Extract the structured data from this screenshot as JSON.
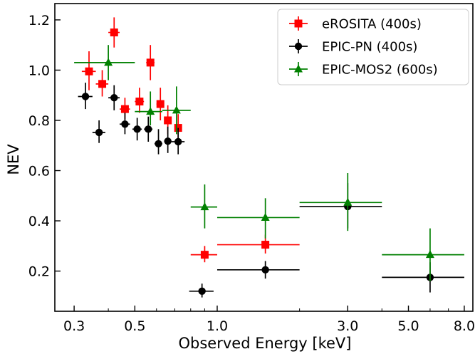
{
  "chart_data": {
    "type": "scatter",
    "xlabel": "Observed Energy [keV]",
    "ylabel": "NEV",
    "xscale": "log",
    "xlim": [
      0.255,
      8.6
    ],
    "ylim": [
      0.04,
      1.265
    ],
    "xticks": [
      {
        "value": 0.3,
        "label": "0.3"
      },
      {
        "value": 0.5,
        "label": "0.5"
      },
      {
        "value": 1.0,
        "label": "1.0"
      },
      {
        "value": 3.0,
        "label": "3.0"
      },
      {
        "value": 5.0,
        "label": "5.0"
      },
      {
        "value": 8.0,
        "label": "8.0"
      }
    ],
    "yticks": [
      {
        "value": 0.2,
        "label": "0.2"
      },
      {
        "value": 0.4,
        "label": "0.4"
      },
      {
        "value": 0.6,
        "label": "0.6"
      },
      {
        "value": 0.8,
        "label": "0.8"
      },
      {
        "value": 1.0,
        "label": "1.0"
      },
      {
        "value": 1.2,
        "label": "1.2"
      }
    ],
    "legend_position": "top-right",
    "series": [
      {
        "name": "eROSITA (400s)",
        "color": "#ff0000",
        "marker": "square",
        "points": [
          {
            "x": 0.34,
            "xlo": 0.32,
            "xhi": 0.36,
            "y": 0.995,
            "ylo": 0.92,
            "yhi": 1.075
          },
          {
            "x": 0.38,
            "xlo": 0.36,
            "xhi": 0.4,
            "y": 0.945,
            "ylo": 0.895,
            "yhi": 1.0
          },
          {
            "x": 0.42,
            "xlo": 0.4,
            "xhi": 0.44,
            "y": 1.15,
            "ylo": 1.09,
            "yhi": 1.21
          },
          {
            "x": 0.46,
            "xlo": 0.44,
            "xhi": 0.48,
            "y": 0.845,
            "ylo": 0.805,
            "yhi": 0.89
          },
          {
            "x": 0.52,
            "xlo": 0.5,
            "xhi": 0.54,
            "y": 0.875,
            "ylo": 0.83,
            "yhi": 0.93
          },
          {
            "x": 0.57,
            "xlo": 0.55,
            "xhi": 0.59,
            "y": 1.03,
            "ylo": 0.96,
            "yhi": 1.1
          },
          {
            "x": 0.62,
            "xlo": 0.6,
            "xhi": 0.64,
            "y": 0.865,
            "ylo": 0.8,
            "yhi": 0.93
          },
          {
            "x": 0.66,
            "xlo": 0.64,
            "xhi": 0.68,
            "y": 0.8,
            "ylo": 0.745,
            "yhi": 0.86
          },
          {
            "x": 0.72,
            "xlo": 0.7,
            "xhi": 0.74,
            "y": 0.77,
            "ylo": 0.72,
            "yhi": 0.825
          },
          {
            "x": 0.9,
            "xlo": 0.8,
            "xhi": 1.0,
            "y": 0.265,
            "ylo": 0.235,
            "yhi": 0.3
          },
          {
            "x": 1.5,
            "xlo": 1.0,
            "xhi": 2.0,
            "y": 0.305,
            "ylo": 0.27,
            "yhi": 0.345
          }
        ]
      },
      {
        "name": "EPIC-PN (400s)",
        "color": "#000000",
        "marker": "circle",
        "points": [
          {
            "x": 0.33,
            "xlo": 0.31,
            "xhi": 0.35,
            "y": 0.895,
            "ylo": 0.845,
            "yhi": 0.95
          },
          {
            "x": 0.37,
            "xlo": 0.35,
            "xhi": 0.39,
            "y": 0.752,
            "ylo": 0.71,
            "yhi": 0.8
          },
          {
            "x": 0.42,
            "xlo": 0.4,
            "xhi": 0.44,
            "y": 0.89,
            "ylo": 0.84,
            "yhi": 0.94
          },
          {
            "x": 0.46,
            "xlo": 0.44,
            "xhi": 0.48,
            "y": 0.785,
            "ylo": 0.745,
            "yhi": 0.83
          },
          {
            "x": 0.51,
            "xlo": 0.49,
            "xhi": 0.53,
            "y": 0.765,
            "ylo": 0.72,
            "yhi": 0.81
          },
          {
            "x": 0.56,
            "xlo": 0.54,
            "xhi": 0.58,
            "y": 0.765,
            "ylo": 0.715,
            "yhi": 0.815
          },
          {
            "x": 0.61,
            "xlo": 0.59,
            "xhi": 0.63,
            "y": 0.707,
            "ylo": 0.665,
            "yhi": 0.765
          },
          {
            "x": 0.66,
            "xlo": 0.64,
            "xhi": 0.68,
            "y": 0.717,
            "ylo": 0.67,
            "yhi": 0.775
          },
          {
            "x": 0.72,
            "xlo": 0.68,
            "xhi": 0.76,
            "y": 0.715,
            "ylo": 0.665,
            "yhi": 0.77
          },
          {
            "x": 0.88,
            "xlo": 0.79,
            "xhi": 0.97,
            "y": 0.12,
            "ylo": 0.095,
            "yhi": 0.15
          },
          {
            "x": 1.5,
            "xlo": 1.0,
            "xhi": 2.0,
            "y": 0.205,
            "ylo": 0.17,
            "yhi": 0.24
          },
          {
            "x": 3.0,
            "xlo": 2.0,
            "xhi": 4.0,
            "y": 0.457,
            "ylo": 0.37,
            "yhi": 0.55
          },
          {
            "x": 6.0,
            "xlo": 4.0,
            "xhi": 8.0,
            "y": 0.175,
            "ylo": 0.115,
            "yhi": 0.235
          }
        ]
      },
      {
        "name": "EPIC-MOS2 (600s)",
        "color": "#008000",
        "marker": "triangle",
        "points": [
          {
            "x": 0.4,
            "xlo": 0.3,
            "xhi": 0.5,
            "y": 1.03,
            "ylo": 0.96,
            "yhi": 1.1
          },
          {
            "x": 0.57,
            "xlo": 0.5,
            "xhi": 0.63,
            "y": 0.835,
            "ylo": 0.78,
            "yhi": 0.915
          },
          {
            "x": 0.71,
            "xlo": 0.63,
            "xhi": 0.8,
            "y": 0.84,
            "ylo": 0.745,
            "yhi": 0.935
          },
          {
            "x": 0.9,
            "xlo": 0.8,
            "xhi": 1.0,
            "y": 0.455,
            "ylo": 0.37,
            "yhi": 0.545
          },
          {
            "x": 1.5,
            "xlo": 1.0,
            "xhi": 2.0,
            "y": 0.413,
            "ylo": 0.33,
            "yhi": 0.49
          },
          {
            "x": 3.0,
            "xlo": 2.0,
            "xhi": 4.0,
            "y": 0.473,
            "ylo": 0.36,
            "yhi": 0.59
          },
          {
            "x": 6.0,
            "xlo": 4.0,
            "xhi": 8.0,
            "y": 0.265,
            "ylo": 0.16,
            "yhi": 0.37
          }
        ]
      }
    ]
  }
}
